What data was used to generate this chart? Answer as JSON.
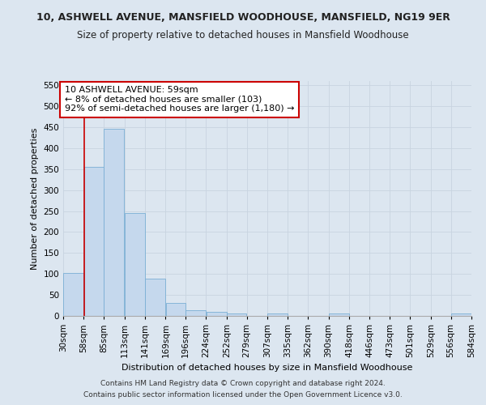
{
  "title1": "10, ASHWELL AVENUE, MANSFIELD WOODHOUSE, MANSFIELD, NG19 9ER",
  "title2": "Size of property relative to detached houses in Mansfield Woodhouse",
  "xlabel": "Distribution of detached houses by size in Mansfield Woodhouse",
  "ylabel": "Number of detached properties",
  "footnote1": "Contains HM Land Registry data © Crown copyright and database right 2024.",
  "footnote2": "Contains public sector information licensed under the Open Government Licence v3.0.",
  "annotation_line1": "10 ASHWELL AVENUE: 59sqm",
  "annotation_line2": "← 8% of detached houses are smaller (103)",
  "annotation_line3": "92% of semi-detached houses are larger (1,180) →",
  "property_sqm": 59,
  "bar_edges": [
    30,
    58,
    85,
    113,
    141,
    169,
    196,
    224,
    252,
    279,
    307,
    335,
    362,
    390,
    418,
    446,
    473,
    501,
    529,
    556,
    584
  ],
  "bar_values": [
    103,
    355,
    447,
    245,
    88,
    30,
    13,
    9,
    6,
    0,
    5,
    0,
    0,
    5,
    0,
    0,
    0,
    0,
    0,
    5
  ],
  "bar_color": "#c5d8ed",
  "bar_edge_color": "#7aafd4",
  "vline_color": "#cc0000",
  "annotation_box_edge": "#cc0000",
  "annotation_box_face": "#ffffff",
  "grid_color": "#c8d4e0",
  "bg_color": "#dce6f0",
  "axes_bg_color": "#dce6f0",
  "ylim": [
    0,
    560
  ],
  "yticks": [
    0,
    50,
    100,
    150,
    200,
    250,
    300,
    350,
    400,
    450,
    500,
    550
  ],
  "title1_fontsize": 9,
  "title2_fontsize": 8.5,
  "ylabel_fontsize": 8,
  "xlabel_fontsize": 8,
  "footnote_fontsize": 6.5,
  "tick_fontsize": 7.5,
  "annot_fontsize": 8
}
